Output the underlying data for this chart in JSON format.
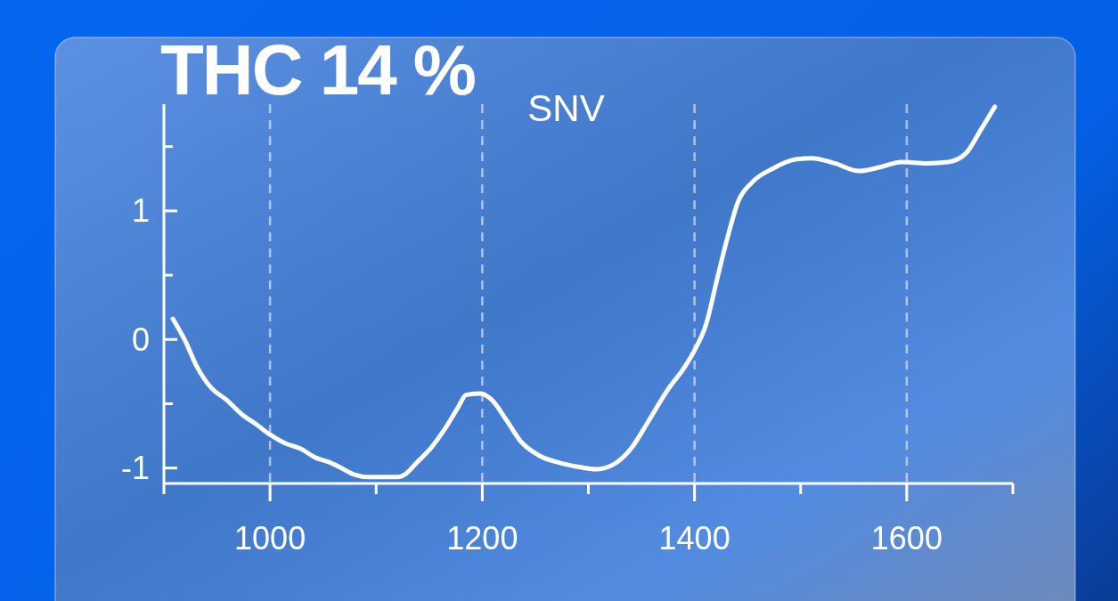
{
  "chart_data": {
    "type": "line",
    "title": "THC 14 %",
    "subtitle": "SNV",
    "color": "#ffffff",
    "x": [
      908.5,
      920,
      931,
      945,
      959,
      973,
      987,
      1000,
      1015,
      1029,
      1043,
      1054,
      1065,
      1079,
      1093,
      1107,
      1121,
      1127,
      1138,
      1152,
      1166,
      1177,
      1185,
      1199,
      1209,
      1223,
      1236,
      1253,
      1273,
      1290,
      1307,
      1324,
      1340,
      1357,
      1374,
      1391,
      1401,
      1411,
      1421,
      1431,
      1441,
      1454,
      1474,
      1495,
      1511,
      1532,
      1555,
      1575,
      1595,
      1619,
      1639,
      1656,
      1669,
      1683
    ],
    "values": [
      0.16,
      -0.01,
      -0.21,
      -0.38,
      -0.47,
      -0.58,
      -0.66,
      -0.74,
      -0.81,
      -0.85,
      -0.92,
      -0.95,
      -0.99,
      -1.05,
      -1.07,
      -1.07,
      -1.07,
      -1.05,
      -0.96,
      -0.84,
      -0.68,
      -0.53,
      -0.43,
      -0.42,
      -0.47,
      -0.63,
      -0.79,
      -0.9,
      -0.96,
      -0.99,
      -1.01,
      -0.97,
      -0.85,
      -0.63,
      -0.4,
      -0.21,
      -0.07,
      0.12,
      0.46,
      0.79,
      1.07,
      1.22,
      1.33,
      1.4,
      1.41,
      1.37,
      1.31,
      1.34,
      1.38,
      1.37,
      1.38,
      1.45,
      1.62,
      1.81
    ],
    "xlim": [
      900,
      1700
    ],
    "xticks": [
      {
        "value": 900,
        "label": null
      },
      1000,
      {
        "value": 1100,
        "label": null
      },
      1200,
      {
        "value": 1300,
        "label": null
      },
      1400,
      {
        "value": 1500,
        "label": null
      },
      1600,
      {
        "value": 1700,
        "label": null
      }
    ],
    "ylim": [
      -1.12,
      1.83
    ],
    "yticks": [
      -1,
      {
        "value": -0.5,
        "label": null
      },
      0,
      {
        "value": 0.5,
        "label": null
      },
      1,
      {
        "value": 1.5,
        "label": null
      }
    ],
    "grid": "x"
  }
}
